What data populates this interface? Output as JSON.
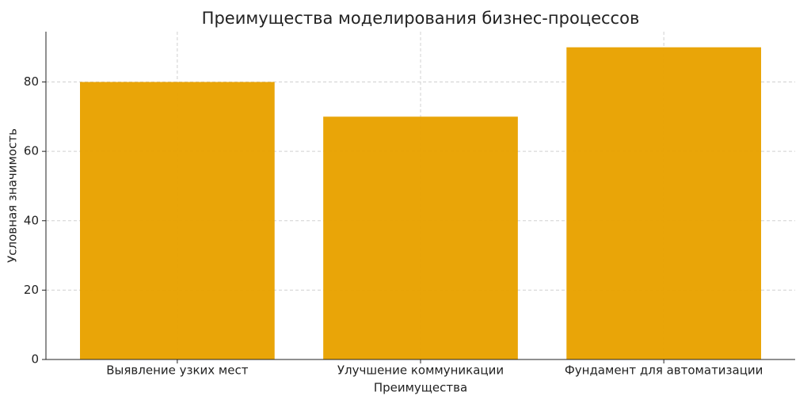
{
  "chart_data": {
    "type": "bar",
    "title": "Преимущества моделирования бизнес-процессов",
    "xlabel": "Преимущества",
    "ylabel": "Условная значимость",
    "categories": [
      "Выявление узких мест",
      "Улучшение коммуникации",
      "Фундамент для автоматизации"
    ],
    "values": [
      80,
      70,
      90
    ],
    "color": "#e8a200",
    "ylim": [
      0,
      94.5
    ],
    "yticks": [
      0,
      20,
      40,
      60,
      80
    ],
    "grid": true
  }
}
